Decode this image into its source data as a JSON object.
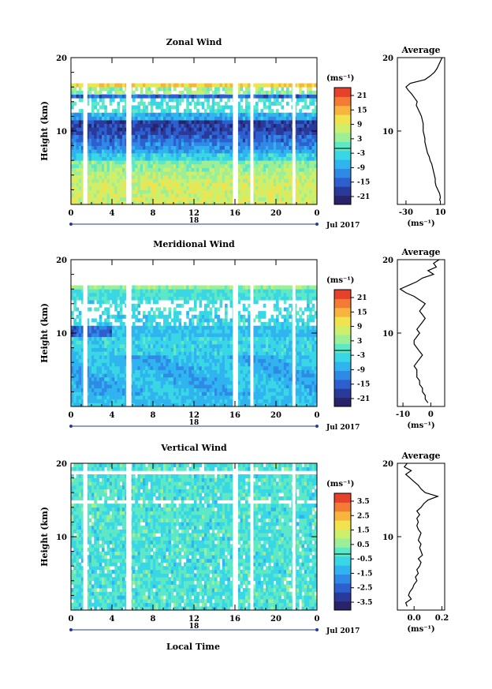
{
  "figure": {
    "date_label": "Jul 2017",
    "xlabel": "Local Time"
  },
  "chart_data": [
    {
      "type": "heatmap",
      "title": "Zonal Wind",
      "xlabel": "",
      "ylabel": "Height (km)",
      "unit": "(ms⁻¹)",
      "x_ticks": [
        "0",
        "4",
        "8",
        "12",
        "16",
        "20",
        "0"
      ],
      "x_day_label": "18",
      "y_ticks": [
        "20",
        "10"
      ],
      "xlim": [
        0,
        24
      ],
      "ylim": [
        0,
        20
      ],
      "colorbar_ticks": [
        "21",
        "15",
        "9",
        "3",
        "-3",
        "-9",
        "-15",
        "-21"
      ],
      "colorbar_range": [
        -24,
        24
      ],
      "data_gaps_hours": [
        [
          1.2,
          1.6
        ],
        [
          5.4,
          5.9
        ],
        [
          15.8,
          16.3
        ],
        [
          17.5,
          17.8
        ],
        [
          21.6,
          21.9
        ]
      ],
      "profile": {
        "title": "Average",
        "xlabel": "(ms⁻¹)",
        "x_ticks": [
          "-30",
          "10"
        ],
        "xlim": [
          -40,
          15
        ],
        "y_ticks": [
          "20",
          "10"
        ],
        "heights": [
          0.5,
          1,
          1.5,
          2,
          2.5,
          3,
          3.5,
          4,
          4.5,
          5,
          5.5,
          6,
          6.5,
          7,
          7.5,
          8,
          8.5,
          9,
          9.5,
          10,
          10.5,
          11,
          11.5,
          12,
          12.5,
          13,
          13.5,
          14,
          14.5,
          15,
          15.5,
          16,
          16.5,
          17,
          17.5,
          18,
          18.5,
          19,
          19.5,
          20
        ],
        "values": [
          9,
          10,
          9,
          7,
          5,
          4,
          4,
          3,
          2,
          1,
          0,
          -2,
          -3,
          -5,
          -6,
          -7,
          -8,
          -8,
          -9,
          -10,
          -10,
          -10,
          -11,
          -12,
          -14,
          -16,
          -18,
          -17,
          -20,
          -23,
          -27,
          -30,
          -25,
          -8,
          -2,
          3,
          6,
          8,
          10,
          12
        ]
      }
    },
    {
      "type": "heatmap",
      "title": "Meridional Wind",
      "xlabel": "",
      "ylabel": "Height (km)",
      "unit": "(ms⁻¹)",
      "x_ticks": [
        "0",
        "4",
        "8",
        "12",
        "16",
        "20",
        "0"
      ],
      "x_day_label": "18",
      "y_ticks": [
        "20",
        "10"
      ],
      "xlim": [
        0,
        24
      ],
      "ylim": [
        0,
        20
      ],
      "colorbar_ticks": [
        "21",
        "15",
        "9",
        "3",
        "-3",
        "-9",
        "-15",
        "-21"
      ],
      "colorbar_range": [
        -24,
        24
      ],
      "data_gaps_hours": [
        [
          1.2,
          1.6
        ],
        [
          5.4,
          5.9
        ],
        [
          15.8,
          16.3
        ],
        [
          17.5,
          17.8
        ],
        [
          21.6,
          21.9
        ]
      ],
      "profile": {
        "title": "Average",
        "xlabel": "(ms⁻¹)",
        "x_ticks": [
          "-10",
          "0"
        ],
        "xlim": [
          -12,
          5
        ],
        "y_ticks": [
          "20",
          "10"
        ],
        "heights": [
          0.5,
          1,
          1.5,
          2,
          2.5,
          3,
          3.5,
          4,
          4.5,
          5,
          5.5,
          6,
          6.5,
          7,
          7.5,
          8,
          8.5,
          9,
          9.5,
          10,
          10.5,
          11,
          11.5,
          12,
          12.5,
          13,
          13.5,
          14,
          14.5,
          15,
          15.5,
          16,
          16.5,
          17,
          17.5,
          18,
          18.5,
          19,
          19.5,
          20
        ],
        "values": [
          -1,
          -2,
          -2,
          -3,
          -3,
          -4,
          -4,
          -5,
          -5,
          -5,
          -6,
          -5,
          -4,
          -3,
          -4,
          -5,
          -6,
          -6,
          -5,
          -4,
          -5,
          -4,
          -3,
          -2,
          -3,
          -4,
          -3,
          -2,
          -4,
          -6,
          -9,
          -11,
          -8,
          -5,
          -3,
          1,
          -1,
          2,
          1,
          3
        ]
      }
    },
    {
      "type": "heatmap",
      "title": "Vertical Wind",
      "xlabel": "Local Time",
      "ylabel": "Height (km)",
      "unit": "(ms⁻¹)",
      "x_ticks": [
        "0",
        "4",
        "8",
        "12",
        "16",
        "20",
        "0"
      ],
      "x_day_label": "18",
      "y_ticks": [
        "20",
        "10"
      ],
      "xlim": [
        0,
        24
      ],
      "ylim": [
        0,
        20
      ],
      "colorbar_ticks": [
        "3.5",
        "2.5",
        "1.5",
        "0.5",
        "-0.5",
        "-1.5",
        "-2.5",
        "-3.5"
      ],
      "colorbar_range": [
        -4,
        4
      ],
      "data_gaps_hours": [
        [
          1.2,
          1.6
        ],
        [
          5.4,
          5.9
        ],
        [
          15.8,
          16.3
        ],
        [
          17.5,
          17.8
        ],
        [
          21.6,
          21.9
        ]
      ],
      "profile": {
        "title": "Average",
        "xlabel": "(ms⁻¹)",
        "x_ticks": [
          "0.0",
          "0.2"
        ],
        "xlim": [
          -0.12,
          0.22
        ],
        "y_ticks": [
          "20",
          "10"
        ],
        "heights": [
          0.5,
          1,
          1.5,
          2,
          2.5,
          3,
          3.5,
          4,
          4.5,
          5,
          5.5,
          6,
          6.5,
          7,
          7.5,
          8,
          8.5,
          9,
          9.5,
          10,
          10.5,
          11,
          11.5,
          12,
          12.5,
          13,
          13.5,
          14,
          14.5,
          15,
          15.5,
          16,
          16.5,
          17,
          17.5,
          18,
          18.5,
          19,
          19.5,
          20
        ],
        "values": [
          -0.05,
          -0.06,
          -0.02,
          -0.04,
          -0.03,
          -0.01,
          0.0,
          0.02,
          0.01,
          0.03,
          0.02,
          0.04,
          0.05,
          0.03,
          0.06,
          0.05,
          0.04,
          0.05,
          0.03,
          0.04,
          0.05,
          0.03,
          0.02,
          0.03,
          0.02,
          0.04,
          0.02,
          0.05,
          0.07,
          0.1,
          0.17,
          0.08,
          0.05,
          0.03,
          0.0,
          -0.03,
          -0.06,
          -0.02,
          -0.07,
          -0.05
        ]
      }
    }
  ]
}
